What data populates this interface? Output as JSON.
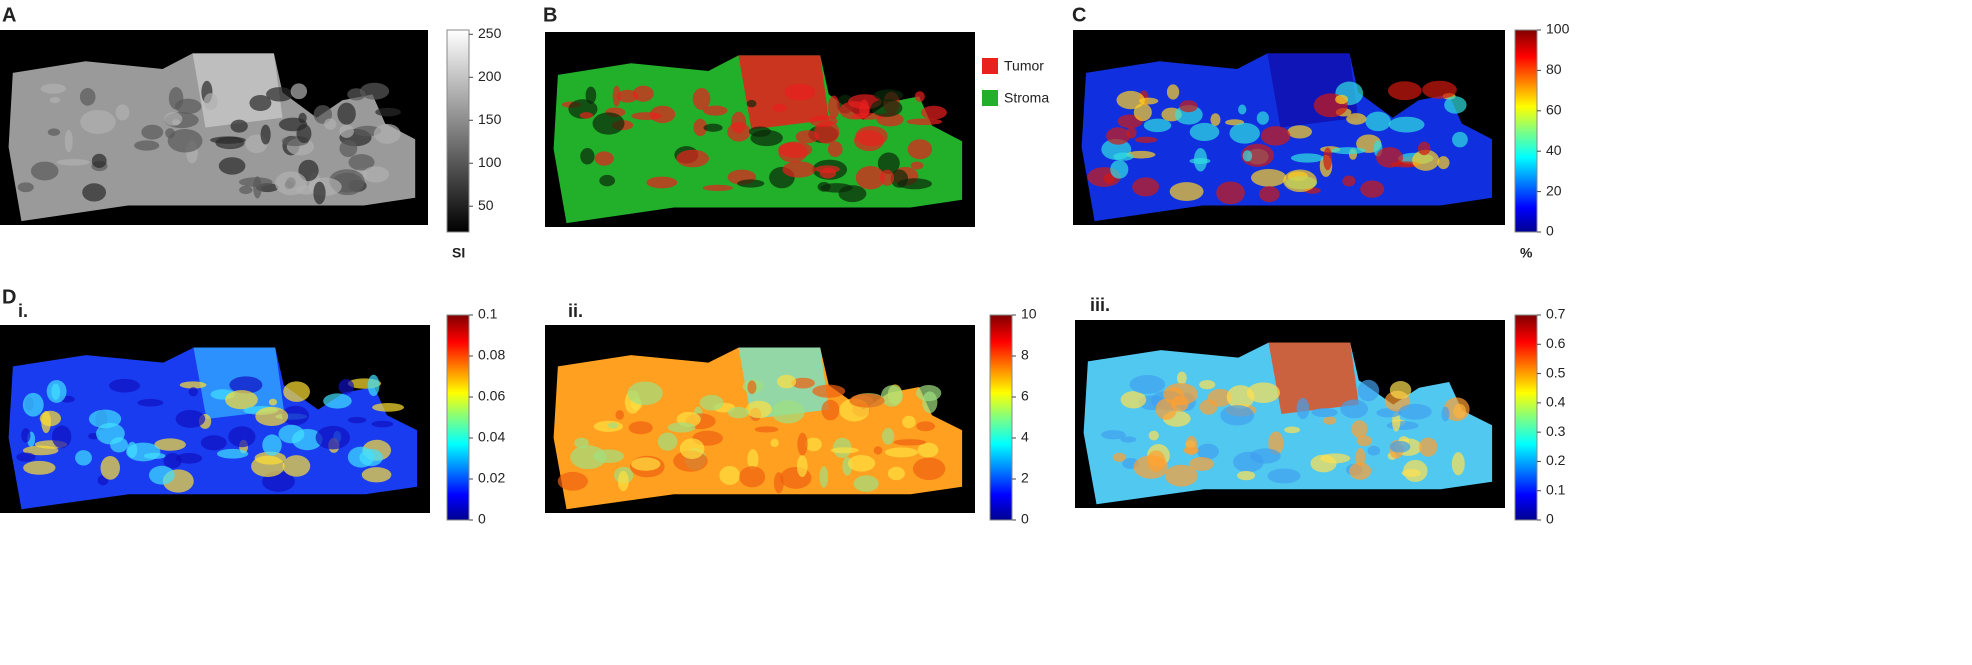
{
  "panels": [
    {
      "label": "A",
      "colorbar": {
        "lim": [
          20,
          255
        ],
        "ticks": [
          50,
          100,
          150,
          200,
          250
        ],
        "unit": "SI"
      }
    },
    {
      "label": "B",
      "legend": [
        {
          "name": "Tumor",
          "color": "#e8201e"
        },
        {
          "name": "Stroma",
          "color": "#22b02a"
        }
      ]
    },
    {
      "label": "C",
      "colorbar": {
        "lim": [
          0,
          100
        ],
        "ticks": [
          0,
          20,
          40,
          60,
          80,
          100
        ],
        "unit": "%"
      }
    },
    {
      "label": "D",
      "subpanels": [
        {
          "label": "i.",
          "colorbar": {
            "lim": [
              0,
              0.1
            ],
            "ticks": [
              0,
              0.02,
              0.04,
              0.06,
              0.08,
              0.1
            ]
          }
        },
        {
          "label": "ii.",
          "colorbar": {
            "lim": [
              0,
              10
            ],
            "ticks": [
              0,
              2,
              4,
              6,
              8,
              10
            ]
          }
        },
        {
          "label": "iii.",
          "colorbar": {
            "lim": [
              0,
              0.7
            ],
            "ticks": [
              0,
              0.1,
              0.2,
              0.3,
              0.4,
              0.5,
              0.6,
              0.7
            ]
          }
        }
      ]
    }
  ]
}
